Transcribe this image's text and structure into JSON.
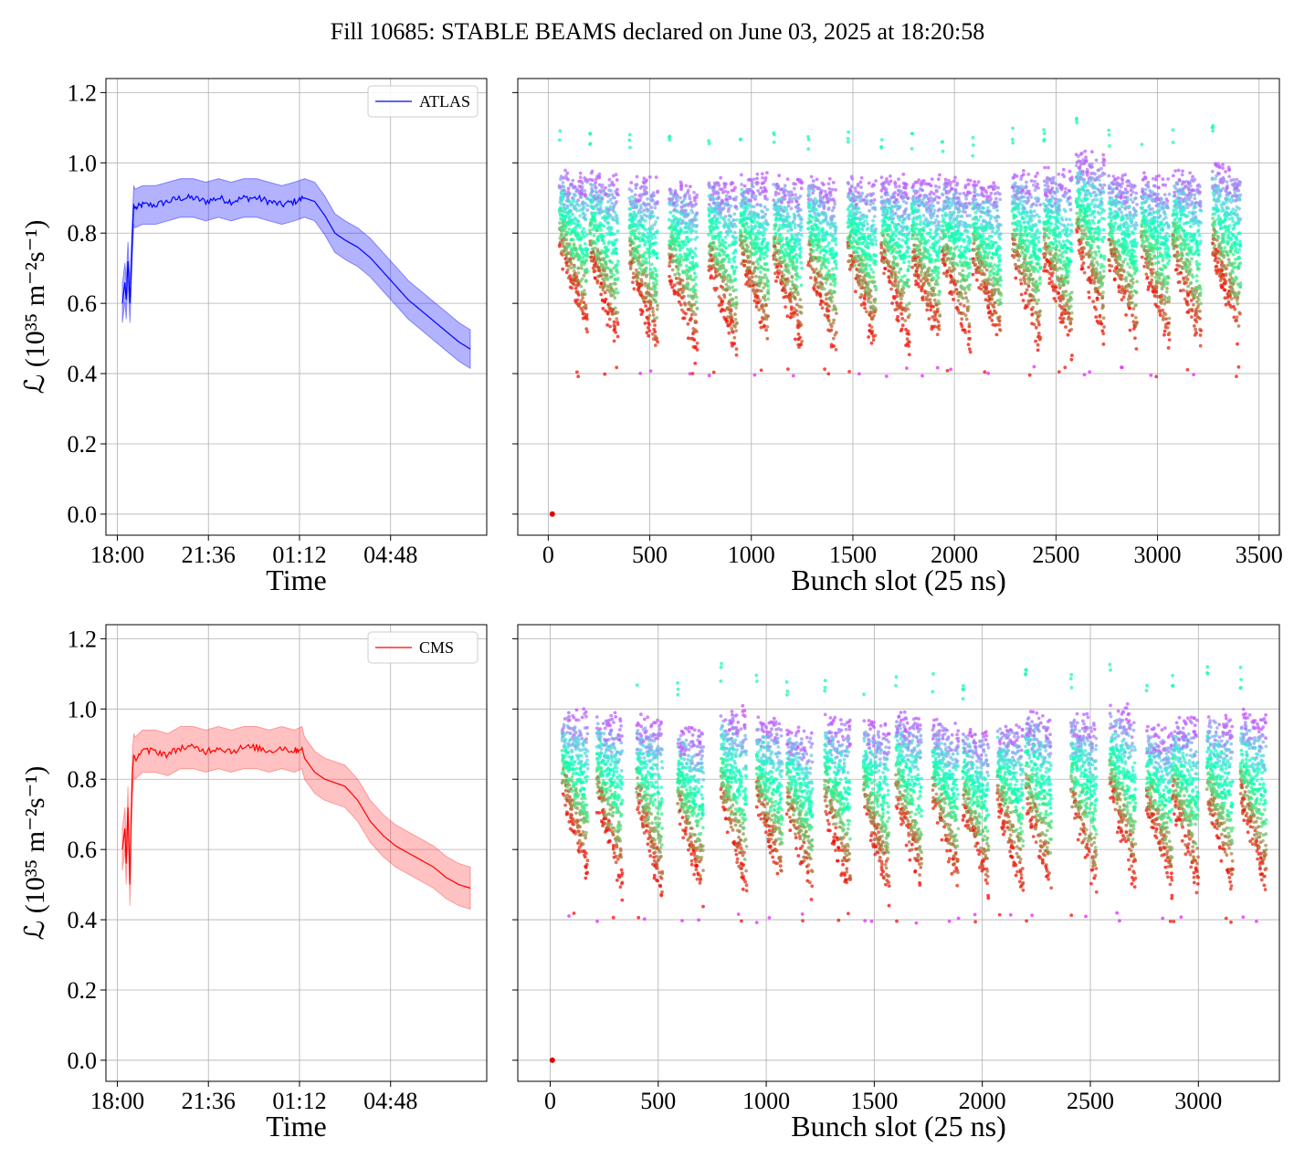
{
  "figure": {
    "title": "Fill 10685: STABLE BEAMS declared on June 03, 2025 at 18:20:58"
  },
  "chart_data": [
    {
      "id": "atlas-time",
      "type": "line",
      "series": [
        {
          "name": "ATLAS",
          "color": "#0000ff",
          "band_color": "#0000ff",
          "x": [
            18.2,
            18.3,
            18.35,
            18.42,
            18.5,
            18.55,
            18.6,
            18.65,
            18.7,
            19.0,
            19.5,
            20.0,
            20.5,
            21.0,
            21.5,
            22.0,
            22.5,
            23.0,
            23.5,
            24.0,
            24.5,
            25.0,
            25.4,
            25.8,
            26.2,
            26.6,
            27.0,
            27.5,
            28.0,
            28.5,
            29.0,
            29.5,
            30.0,
            30.5,
            31.0,
            31.5,
            31.95
          ],
          "y": [
            0.6,
            0.66,
            0.61,
            0.72,
            0.6,
            0.7,
            0.8,
            0.88,
            0.87,
            0.88,
            0.88,
            0.89,
            0.9,
            0.9,
            0.89,
            0.9,
            0.89,
            0.9,
            0.9,
            0.89,
            0.88,
            0.89,
            0.9,
            0.89,
            0.85,
            0.8,
            0.78,
            0.76,
            0.73,
            0.69,
            0.65,
            0.61,
            0.58,
            0.55,
            0.52,
            0.49,
            0.47
          ],
          "band": 0.055
        }
      ],
      "xlabel": "Time",
      "ylabel": "ℒ (10³⁵ m⁻²s⁻¹)",
      "xticks": [
        18.0,
        21.6,
        25.2,
        28.8
      ],
      "xtick_labels": [
        "18:00",
        "21:36",
        "01:12",
        "04:48"
      ],
      "xlim": [
        17.55,
        32.6
      ],
      "yticks": [
        0.0,
        0.2,
        0.4,
        0.6,
        0.8,
        1.0,
        1.2
      ],
      "ytick_labels": [
        "0.0",
        "0.2",
        "0.4",
        "0.6",
        "0.8",
        "1.0",
        "1.2"
      ],
      "ylim": [
        -0.06,
        1.24
      ],
      "grid": true,
      "legend": "top-right"
    },
    {
      "id": "atlas-bunch",
      "type": "scatter",
      "xlabel": "Bunch slot (25 ns)",
      "xticks": [
        0,
        500,
        1000,
        1500,
        2000,
        2500,
        3000,
        3500
      ],
      "xtick_labels": [
        "0",
        "500",
        "1000",
        "1500",
        "2000",
        "2500",
        "3000",
        "3500"
      ],
      "xlim": [
        -150,
        3600
      ],
      "yticks": [
        0.0,
        0.2,
        0.4,
        0.6,
        0.8,
        1.0,
        1.2
      ],
      "ylim": [
        -0.06,
        1.24
      ],
      "grid": true,
      "colormap": "rainbow",
      "outlier_point": {
        "x": 20,
        "y": 0.0
      },
      "train_starts": [
        55,
        205,
        400,
        595,
        790,
        945,
        1110,
        1280,
        1475,
        1640,
        1790,
        1940,
        2090,
        2285,
        2440,
        2600,
        2760,
        2920,
        3075,
        3270
      ],
      "train_length": 140,
      "y_top": [
        0.95,
        0.95,
        0.93,
        0.92,
        0.93,
        0.94,
        0.93,
        0.93,
        0.93,
        0.93,
        0.93,
        0.93,
        0.92,
        0.95,
        0.95,
        1.0,
        0.94,
        0.94,
        0.95,
        0.97
      ],
      "y_bottom": [
        0.52,
        0.47,
        0.45,
        0.44,
        0.45,
        0.48,
        0.46,
        0.45,
        0.47,
        0.47,
        0.48,
        0.47,
        0.48,
        0.47,
        0.46,
        0.5,
        0.48,
        0.48,
        0.47,
        0.48
      ]
    },
    {
      "id": "cms-time",
      "type": "line",
      "series": [
        {
          "name": "CMS",
          "color": "#ff0000",
          "band_color": "#ff3333",
          "x": [
            18.2,
            18.3,
            18.35,
            18.42,
            18.5,
            18.55,
            18.6,
            18.65,
            18.7,
            19.0,
            19.5,
            20.0,
            20.5,
            21.0,
            21.5,
            22.0,
            22.5,
            23.0,
            23.5,
            24.0,
            24.5,
            25.0,
            25.3,
            25.4,
            25.8,
            26.2,
            26.6,
            27.0,
            27.5,
            28.0,
            28.5,
            29.0,
            29.5,
            30.0,
            30.5,
            31.0,
            31.5,
            31.95
          ],
          "y": [
            0.6,
            0.66,
            0.56,
            0.72,
            0.5,
            0.7,
            0.82,
            0.87,
            0.86,
            0.88,
            0.88,
            0.87,
            0.89,
            0.89,
            0.88,
            0.89,
            0.88,
            0.89,
            0.89,
            0.88,
            0.89,
            0.88,
            0.89,
            0.86,
            0.82,
            0.8,
            0.79,
            0.78,
            0.74,
            0.68,
            0.64,
            0.61,
            0.59,
            0.57,
            0.55,
            0.52,
            0.5,
            0.49
          ],
          "band": 0.06
        }
      ],
      "xlabel": "Time",
      "ylabel": "ℒ (10³⁵ m⁻²s⁻¹)",
      "xticks": [
        18.0,
        21.6,
        25.2,
        28.8
      ],
      "xtick_labels": [
        "18:00",
        "21:36",
        "01:12",
        "04:48"
      ],
      "xlim": [
        17.55,
        32.6
      ],
      "yticks": [
        0.0,
        0.2,
        0.4,
        0.6,
        0.8,
        1.0,
        1.2
      ],
      "ytick_labels": [
        "0.0",
        "0.2",
        "0.4",
        "0.6",
        "0.8",
        "1.0",
        "1.2"
      ],
      "ylim": [
        -0.06,
        1.24
      ],
      "grid": true,
      "legend": "top-right"
    },
    {
      "id": "cms-bunch",
      "type": "scatter",
      "xlabel": "Bunch slot (25 ns)",
      "xticks": [
        0,
        500,
        1000,
        1500,
        2000,
        2500,
        3000
      ],
      "xtick_labels": [
        "0",
        "500",
        "1000",
        "1500",
        "2000",
        "2500",
        "3000"
      ],
      "xlim": [
        -150,
        3375
      ],
      "yticks": [
        0.0,
        0.2,
        0.4,
        0.6,
        0.8,
        1.0,
        1.2
      ],
      "ylim": [
        -0.06,
        1.24
      ],
      "grid": true,
      "colormap": "rainbow",
      "outlier_point": {
        "x": 10,
        "y": 0.0
      },
      "train_starts": [
        55,
        215,
        400,
        590,
        790,
        955,
        1095,
        1270,
        1450,
        1600,
        1770,
        1910,
        2070,
        2200,
        2410,
        2590,
        2760,
        2880,
        3040,
        3195
      ],
      "train_length": 120,
      "y_top": [
        0.97,
        0.96,
        0.95,
        0.92,
        0.97,
        0.95,
        0.92,
        0.95,
        0.94,
        0.96,
        0.94,
        0.92,
        0.94,
        0.96,
        0.96,
        0.98,
        0.92,
        0.95,
        0.96,
        0.96
      ],
      "y_bottom": [
        0.52,
        0.48,
        0.47,
        0.46,
        0.47,
        0.49,
        0.47,
        0.46,
        0.47,
        0.48,
        0.49,
        0.47,
        0.48,
        0.47,
        0.46,
        0.5,
        0.49,
        0.48,
        0.47,
        0.48
      ]
    }
  ]
}
